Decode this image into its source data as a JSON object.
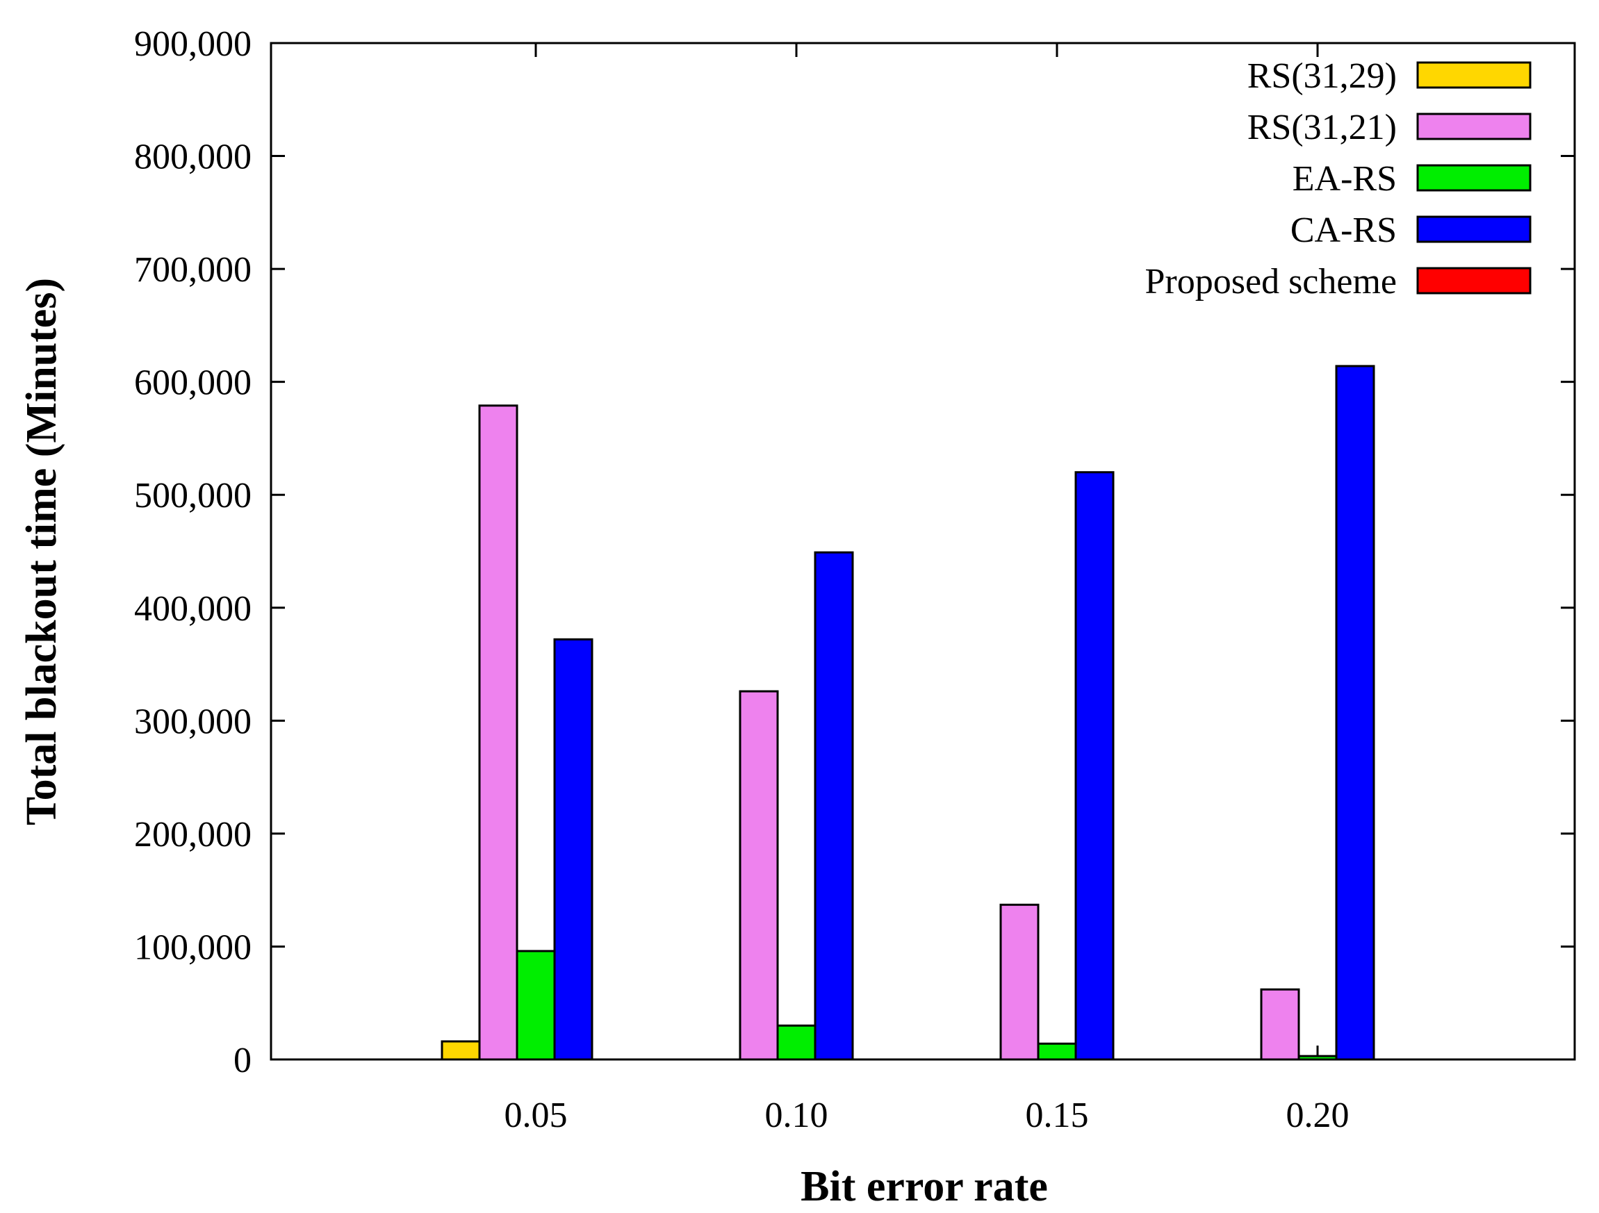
{
  "chart_data": {
    "type": "bar",
    "title": "",
    "xlabel": "Bit error rate",
    "ylabel": "Total blackout time (Minutes)",
    "categories": [
      "0.05",
      "0.10",
      "0.15",
      "0.20"
    ],
    "ylim": [
      0,
      900000
    ],
    "yticks": [
      0,
      100000,
      200000,
      300000,
      400000,
      500000,
      600000,
      700000,
      800000,
      900000
    ],
    "ytick_labels": [
      "0",
      "100,000",
      "200,000",
      "300,000",
      "400,000",
      "500,000",
      "600,000",
      "700,000",
      "800,000",
      "900,000"
    ],
    "grid": false,
    "legend_position": "top-right",
    "series": [
      {
        "name": "RS(31,29)",
        "color": "#FFD700",
        "values": [
          16000,
          0,
          0,
          0
        ]
      },
      {
        "name": "RS(31,21)",
        "color": "#EE82EE",
        "values": [
          579000,
          326000,
          137000,
          62000
        ]
      },
      {
        "name": "EA-RS",
        "color": "#00EE00",
        "values": [
          96000,
          30000,
          14000,
          3000
        ]
      },
      {
        "name": "CA-RS",
        "color": "#0000FF",
        "values": [
          372000,
          449000,
          520000,
          614000
        ]
      },
      {
        "name": "Proposed scheme",
        "color": "#FF0000",
        "values": [
          0,
          0,
          0,
          0
        ]
      }
    ]
  }
}
